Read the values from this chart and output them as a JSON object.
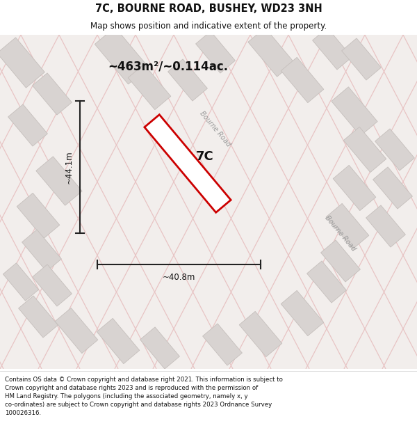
{
  "title": "7C, BOURNE ROAD, BUSHEY, WD23 3NH",
  "subtitle": "Map shows position and indicative extent of the property.",
  "footer": "Contains OS data © Crown copyright and database right 2021. This information is subject to\nCrown copyright and database rights 2023 and is reproduced with the permission of\nHM Land Registry. The polygons (including the associated geometry, namely x, y\nco-ordinates) are subject to Crown copyright and database rights 2023 Ordnance Survey\n100026316.",
  "area_label": "~463m²/~0.114ac.",
  "property_label": "7C",
  "dim_width": "~40.8m",
  "dim_height": "~44.1m",
  "road_label_1": "Bourne Road",
  "road_label_2": "Bourne Road",
  "map_bg": "#f2eeec",
  "block_color": "#d8d3d1",
  "block_edge_color": "#c5bfbc",
  "road_line_color": "#e8c4c4",
  "property_fill": "#ffffff",
  "property_edge": "#cc0000",
  "dim_color": "#222222",
  "title_color": "#111111",
  "footer_color": "#111111"
}
